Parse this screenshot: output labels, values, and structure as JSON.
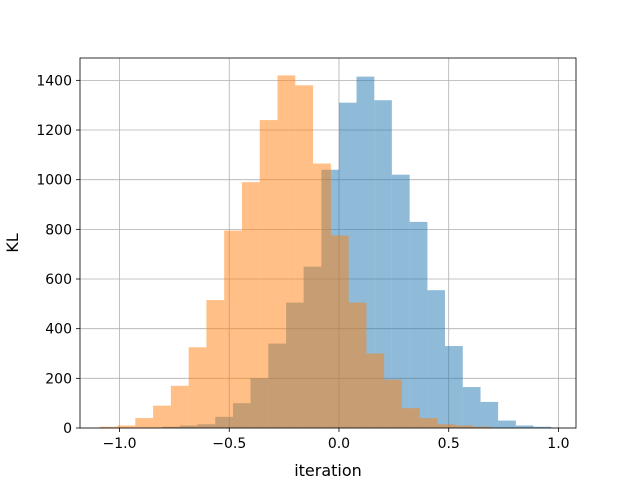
{
  "chart_data": {
    "type": "bar",
    "subtype": "histogram",
    "title": "",
    "xlabel": "iteration",
    "ylabel": "KL",
    "xlim": [
      -1.18,
      1.08
    ],
    "ylim": [
      0,
      1490
    ],
    "grid": true,
    "legend": "none",
    "xticks": [
      -1.0,
      -0.5,
      0.0,
      0.5,
      1.0
    ],
    "xtick_labels": [
      "−1.0",
      "−0.5",
      "0.0",
      "0.5",
      "1.0"
    ],
    "yticks": [
      0,
      200,
      400,
      600,
      800,
      1000,
      1200,
      1400
    ],
    "ytick_labels": [
      "0",
      "200",
      "400",
      "600",
      "800",
      "1000",
      "1200",
      "1400"
    ],
    "series": [
      {
        "color": "#1f77b4",
        "opacity": 0.5,
        "bins": [
          {
            "x0": -0.806,
            "x1": -0.725,
            "value": 5
          },
          {
            "x0": -0.725,
            "x1": -0.645,
            "value": 10
          },
          {
            "x0": -0.645,
            "x1": -0.564,
            "value": 15
          },
          {
            "x0": -0.564,
            "x1": -0.483,
            "value": 45
          },
          {
            "x0": -0.483,
            "x1": -0.403,
            "value": 100
          },
          {
            "x0": -0.403,
            "x1": -0.322,
            "value": 200
          },
          {
            "x0": -0.322,
            "x1": -0.241,
            "value": 340
          },
          {
            "x0": -0.241,
            "x1": -0.161,
            "value": 505
          },
          {
            "x0": -0.161,
            "x1": -0.08,
            "value": 650
          },
          {
            "x0": -0.08,
            "x1": 0.0,
            "value": 1040
          },
          {
            "x0": 0.0,
            "x1": 0.08,
            "value": 1310
          },
          {
            "x0": 0.08,
            "x1": 0.161,
            "value": 1415
          },
          {
            "x0": 0.161,
            "x1": 0.241,
            "value": 1320
          },
          {
            "x0": 0.241,
            "x1": 0.322,
            "value": 1020
          },
          {
            "x0": 0.322,
            "x1": 0.403,
            "value": 830
          },
          {
            "x0": 0.403,
            "x1": 0.483,
            "value": 555
          },
          {
            "x0": 0.483,
            "x1": 0.564,
            "value": 330
          },
          {
            "x0": 0.564,
            "x1": 0.645,
            "value": 165
          },
          {
            "x0": 0.645,
            "x1": 0.725,
            "value": 105
          },
          {
            "x0": 0.725,
            "x1": 0.806,
            "value": 30
          },
          {
            "x0": 0.806,
            "x1": 0.886,
            "value": 10
          },
          {
            "x0": 0.886,
            "x1": 0.967,
            "value": 5
          }
        ]
      },
      {
        "color": "#ff7f0e",
        "opacity": 0.5,
        "bins": [
          {
            "x0": -1.09,
            "x1": -1.009,
            "value": 5
          },
          {
            "x0": -1.009,
            "x1": -0.928,
            "value": 10
          },
          {
            "x0": -0.928,
            "x1": -0.847,
            "value": 40
          },
          {
            "x0": -0.847,
            "x1": -0.766,
            "value": 90
          },
          {
            "x0": -0.766,
            "x1": -0.685,
            "value": 170
          },
          {
            "x0": -0.685,
            "x1": -0.604,
            "value": 325
          },
          {
            "x0": -0.604,
            "x1": -0.523,
            "value": 515
          },
          {
            "x0": -0.523,
            "x1": -0.442,
            "value": 795
          },
          {
            "x0": -0.442,
            "x1": -0.361,
            "value": 990
          },
          {
            "x0": -0.361,
            "x1": -0.28,
            "value": 1240
          },
          {
            "x0": -0.28,
            "x1": -0.199,
            "value": 1420
          },
          {
            "x0": -0.199,
            "x1": -0.118,
            "value": 1380
          },
          {
            "x0": -0.118,
            "x1": -0.037,
            "value": 1065
          },
          {
            "x0": -0.037,
            "x1": 0.044,
            "value": 775
          },
          {
            "x0": 0.044,
            "x1": 0.125,
            "value": 505
          },
          {
            "x0": 0.125,
            "x1": 0.206,
            "value": 300
          },
          {
            "x0": 0.206,
            "x1": 0.287,
            "value": 195
          },
          {
            "x0": 0.287,
            "x1": 0.368,
            "value": 80
          },
          {
            "x0": 0.368,
            "x1": 0.449,
            "value": 40
          },
          {
            "x0": 0.449,
            "x1": 0.53,
            "value": 15
          },
          {
            "x0": 0.53,
            "x1": 0.611,
            "value": 10
          },
          {
            "x0": 0.611,
            "x1": 0.692,
            "value": 5
          }
        ]
      }
    ]
  }
}
